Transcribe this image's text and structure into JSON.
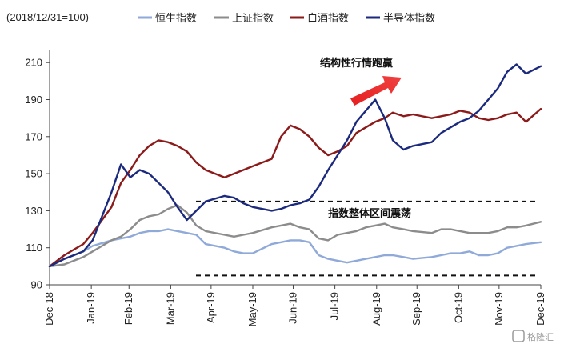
{
  "chart_data": {
    "type": "line",
    "base_note": "(2018/12/31=100)",
    "y_ticks": [
      90,
      110,
      130,
      150,
      170,
      190,
      210
    ],
    "ylim": [
      90,
      217
    ],
    "x_ticks": [
      "Dec-18",
      "Jan-19",
      "Feb-19",
      "Mar-19",
      "Apr-19",
      "May-19",
      "Jun-19",
      "Jul-19",
      "Aug-19",
      "Sep-19",
      "Oct-19",
      "Nov-19",
      "Dec-19"
    ],
    "x": [
      "2018-12-31",
      "2019-01-11",
      "2019-01-18",
      "2019-01-25",
      "2019-02-01",
      "2019-02-15",
      "2019-02-22",
      "2019-03-01",
      "2019-03-08",
      "2019-03-15",
      "2019-03-22",
      "2019-03-29",
      "2019-04-05",
      "2019-04-12",
      "2019-04-19",
      "2019-04-26",
      "2019-05-10",
      "2019-05-17",
      "2019-05-24",
      "2019-05-31",
      "2019-06-14",
      "2019-06-21",
      "2019-06-28",
      "2019-07-05",
      "2019-07-12",
      "2019-07-19",
      "2019-07-26",
      "2019-08-02",
      "2019-08-09",
      "2019-08-16",
      "2019-08-23",
      "2019-08-30",
      "2019-09-06",
      "2019-09-12",
      "2019-09-20",
      "2019-09-27",
      "2019-10-11",
      "2019-10-18",
      "2019-10-25",
      "2019-11-01",
      "2019-11-08",
      "2019-11-15",
      "2019-11-22",
      "2019-11-29",
      "2019-12-06",
      "2019-12-13",
      "2019-12-20",
      "2019-12-31"
    ],
    "series": [
      {
        "name": "恒生指数",
        "color": "#8fa9d9",
        "values": [
          100,
          104,
          106,
          108,
          111,
          114,
          115,
          116,
          118,
          119,
          119,
          120,
          119,
          118,
          117,
          112,
          110,
          108,
          107,
          107,
          112,
          113,
          114,
          114,
          113,
          106,
          104,
          103,
          102,
          103,
          104,
          105,
          106,
          106,
          105,
          104,
          105,
          106,
          107,
          107,
          108,
          106,
          106,
          107,
          110,
          111,
          112,
          113
        ]
      },
      {
        "name": "上证指数",
        "color": "#8c8c8c",
        "values": [
          100,
          101,
          103,
          105,
          108,
          114,
          116,
          120,
          125,
          127,
          128,
          131,
          133,
          129,
          122,
          119,
          117,
          116,
          117,
          118,
          121,
          122,
          123,
          121,
          120,
          115,
          114,
          117,
          118,
          119,
          121,
          122,
          123,
          121,
          120,
          119,
          118,
          120,
          120,
          119,
          118,
          118,
          118,
          119,
          121,
          121,
          122,
          124
        ]
      },
      {
        "name": "白酒指数",
        "color": "#8b1a1a",
        "values": [
          100,
          106,
          109,
          112,
          118,
          132,
          145,
          152,
          160,
          165,
          168,
          167,
          165,
          162,
          156,
          152,
          148,
          150,
          152,
          154,
          158,
          170,
          176,
          174,
          170,
          164,
          160,
          162,
          165,
          172,
          175,
          178,
          180,
          183,
          181,
          182,
          180,
          181,
          182,
          184,
          183,
          180,
          179,
          180,
          182,
          183,
          178,
          185
        ]
      },
      {
        "name": "半导体指数",
        "color": "#1c2a7e",
        "values": [
          100,
          104,
          106,
          108,
          114,
          140,
          155,
          148,
          152,
          150,
          145,
          140,
          132,
          125,
          130,
          135,
          138,
          137,
          134,
          132,
          130,
          131,
          133,
          134,
          136,
          143,
          152,
          160,
          168,
          178,
          184,
          190,
          180,
          168,
          163,
          165,
          167,
          172,
          175,
          178,
          180,
          184,
          190,
          196,
          205,
          209,
          204,
          208
        ]
      }
    ],
    "annotations": {
      "top": "结构性行情跑赢",
      "middle": "指数整体区间震荡"
    },
    "reference_lines": [
      135,
      95
    ],
    "watermark": "格隆汇"
  }
}
